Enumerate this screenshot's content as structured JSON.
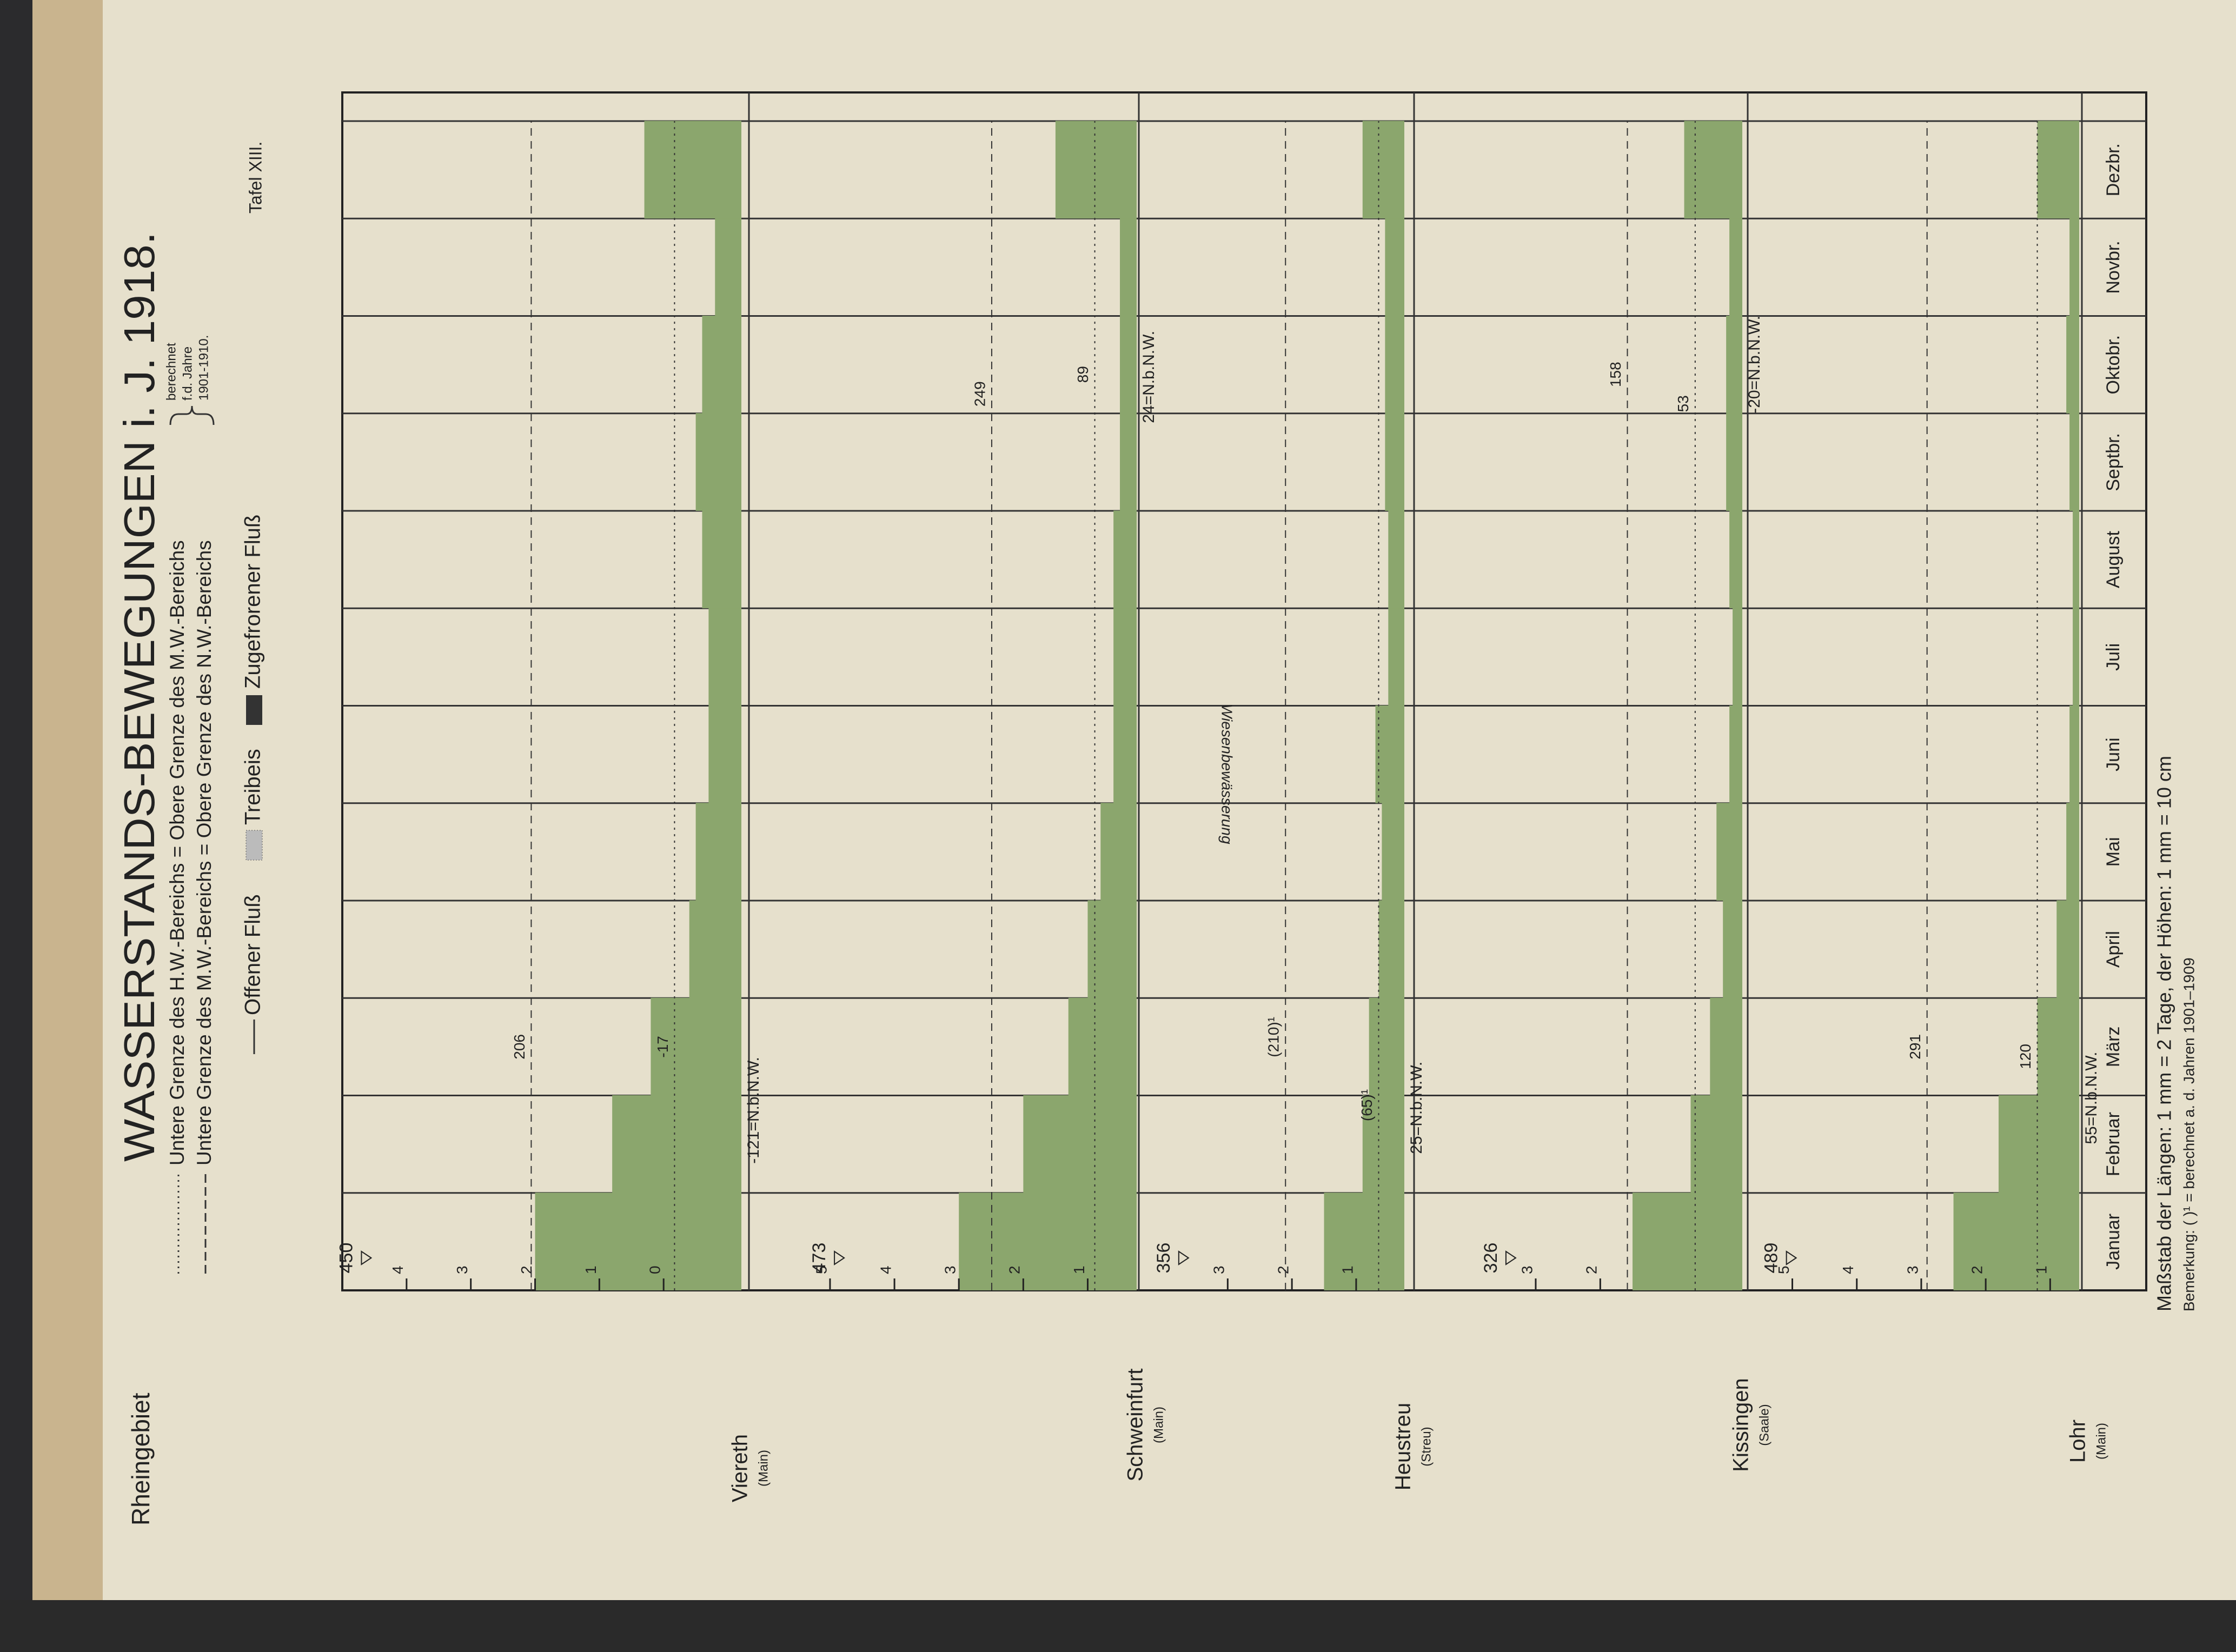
{
  "header": {
    "region": "Rheingebiet",
    "title": "WASSERSTANDS-BEWEGUNGEN i. J. 1918.",
    "legend_hw": "Untere Grenze des H.W.-Bereichs = Obere Grenze des M.W.-Bereichs",
    "legend_nw": "Untere Grenze des M.W.-Bereichs = Obere Grenze des N.W.-Bereichs",
    "legend_note": [
      "berechnet",
      "f.d. Jahre",
      "1901-1910."
    ],
    "legend_ice": [
      "Offener Fluß",
      "Treibeis",
      "Zugefrorener Fluß"
    ],
    "plate": "Tafel XIII."
  },
  "footer": {
    "scale": "Maßstab der Längen: 1 mm = 2 Tage, der Höhen: 1 mm = 10 cm",
    "remark": "Bemerkung: ( )¹ = berechnet a. d. Jahren 1901–1909"
  },
  "chart_data": [
    {
      "type": "area",
      "station": "Viereth",
      "river": "(Main)",
      "color": "#8ba66d",
      "values": [
        2.0,
        0.8,
        0.2,
        -0.4,
        -0.5,
        -0.7,
        -0.7,
        -0.6,
        -0.5,
        -0.6,
        -0.8,
        0.3
      ],
      "ylim": [
        -1.21,
        5.0
      ],
      "yticks": [
        0,
        1,
        2,
        3,
        4
      ],
      "peak": {
        "value": 4.5,
        "label": "450"
      },
      "reference_lines": [
        {
          "value": 2.06,
          "label": "206"
        },
        {
          "value": -0.17,
          "label": "-17"
        }
      ],
      "baseline_label": "-121=N.b.N.W."
    },
    {
      "type": "area",
      "station": "Schweinfurt",
      "river": "(Main)",
      "color": "#8ba66d",
      "values": [
        3.0,
        2.0,
        1.3,
        1.0,
        0.8,
        0.6,
        0.6,
        0.6,
        0.5,
        0.5,
        0.5,
        1.5
      ],
      "ylim": [
        0.24,
        6.2
      ],
      "yticks": [
        1,
        2,
        3,
        4,
        5
      ],
      "peak": {
        "value": 4.73,
        "label": "473"
      },
      "reference_lines": [
        {
          "value": 2.49,
          "label": "249"
        },
        {
          "value": 0.89,
          "label": "89"
        }
      ],
      "baseline_label": "24=N.b.N.W."
    },
    {
      "type": "area",
      "station": "Heustreu",
      "river": "(Streu)",
      "color": "#8ba66d",
      "values": [
        1.5,
        0.9,
        0.8,
        0.65,
        0.6,
        0.7,
        0.5,
        0.5,
        0.55,
        0.55,
        0.55,
        0.9
      ],
      "ylim": [
        0.25,
        4.35
      ],
      "yticks": [
        1,
        2,
        3
      ],
      "peak": {
        "value": 3.56,
        "label": "356"
      },
      "reference_lines": [
        {
          "value": 2.1,
          "label": "(210)¹"
        },
        {
          "value": 0.65,
          "label": "(65)¹"
        }
      ],
      "baseline_label": "25=N.b.N.W.",
      "annotation": "Wiesenbewässerung"
    },
    {
      "type": "area",
      "station": "Kissingen",
      "river": "(Saale)",
      "color": "#8ba66d",
      "values": [
        1.5,
        0.6,
        0.3,
        0.1,
        0.2,
        0.0,
        -0.05,
        0.0,
        0.05,
        0.05,
        0.0,
        0.7
      ],
      "ylim": [
        -0.2,
        4.7
      ],
      "yticks": [
        2,
        3
      ],
      "peak": {
        "value": 3.26,
        "label": "326"
      },
      "reference_lines": [
        {
          "value": 1.58,
          "label": "158"
        },
        {
          "value": 0.53,
          "label": "53"
        }
      ],
      "baseline_label": "-20=N.b.N.W."
    },
    {
      "type": "area",
      "station": "Lohr",
      "river": "(Main)",
      "color": "#8ba66d",
      "categories": [
        "Januar",
        "Februar",
        "März",
        "April",
        "Mai",
        "Juni",
        "Juli",
        "August",
        "Septbr.",
        "Oktobr.",
        "Novbr.",
        "Dezbr."
      ],
      "values": [
        2.5,
        1.8,
        1.2,
        0.9,
        0.75,
        0.7,
        0.65,
        0.65,
        0.7,
        0.75,
        0.7,
        1.2
      ],
      "ylim": [
        0.55,
        5.6
      ],
      "yticks": [
        1,
        2,
        3,
        4,
        5
      ],
      "peak": {
        "value": 4.89,
        "label": "489"
      },
      "reference_lines": [
        {
          "value": 2.91,
          "label": "291"
        },
        {
          "value": 1.2,
          "label": "120"
        }
      ],
      "baseline_label": "55=N.b.N.W."
    }
  ]
}
